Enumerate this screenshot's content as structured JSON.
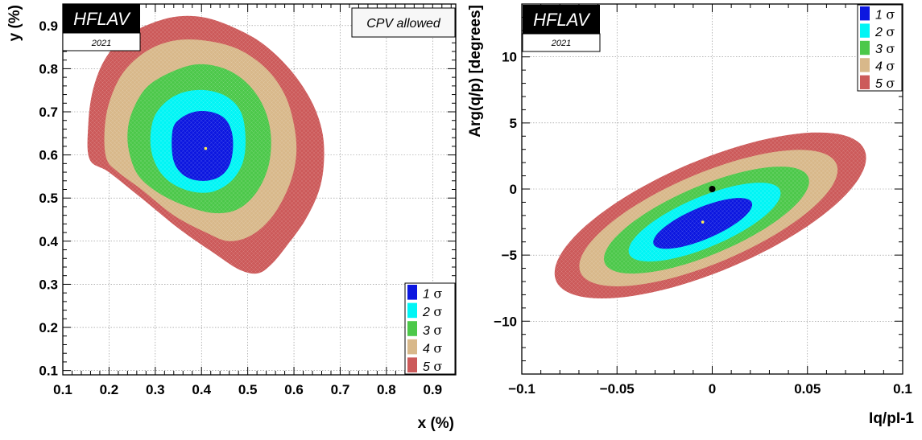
{
  "colors": {
    "sigma1": "#0c17e0",
    "sigma2": "#00f5f5",
    "sigma3": "#4cc84a",
    "sigma4": "#d8b88a",
    "sigma5": "#cc5a5a",
    "badge_bg": "#000000",
    "badge_text": "#ffffff",
    "grid": "#888888"
  },
  "chart_data": [
    {
      "type": "contour",
      "badge": "HFLAV",
      "badge_year": "2021",
      "tag": "CPV allowed",
      "xlabel": "x (%)",
      "ylabel": "y (%)",
      "xlim": [
        0.1,
        0.95
      ],
      "ylim": [
        0.09,
        0.95
      ],
      "xticks": [
        "0.1",
        "0.2",
        "0.3",
        "0.4",
        "0.5",
        "0.6",
        "0.7",
        "0.8",
        "0.9"
      ],
      "yticks": [
        "0.1",
        "0.2",
        "0.3",
        "0.4",
        "0.5",
        "0.6",
        "0.7",
        "0.8",
        "0.9"
      ],
      "grid": true,
      "legend_position": "bottom-right",
      "central_value": {
        "x": 0.409,
        "y": 0.615
      },
      "contours": [
        {
          "label": "5",
          "symbol": "σ",
          "color_key": "sigma5",
          "points": [
            [
              0.165,
              0.75
            ],
            [
              0.19,
              0.82
            ],
            [
              0.23,
              0.87
            ],
            [
              0.28,
              0.9
            ],
            [
              0.34,
              0.92
            ],
            [
              0.4,
              0.92
            ],
            [
              0.46,
              0.9
            ],
            [
              0.53,
              0.86
            ],
            [
              0.59,
              0.8
            ],
            [
              0.635,
              0.73
            ],
            [
              0.66,
              0.66
            ],
            [
              0.665,
              0.59
            ],
            [
              0.655,
              0.52
            ],
            [
              0.625,
              0.45
            ],
            [
              0.585,
              0.39
            ],
            [
              0.55,
              0.345
            ],
            [
              0.52,
              0.325
            ],
            [
              0.48,
              0.335
            ],
            [
              0.43,
              0.37
            ],
            [
              0.35,
              0.43
            ],
            [
              0.27,
              0.5
            ],
            [
              0.2,
              0.56
            ],
            [
              0.158,
              0.59
            ],
            [
              0.155,
              0.67
            ]
          ]
        },
        {
          "label": "4",
          "symbol": "σ",
          "color_key": "sigma4",
          "points": [
            [
              0.2,
              0.72
            ],
            [
              0.23,
              0.79
            ],
            [
              0.28,
              0.84
            ],
            [
              0.34,
              0.865
            ],
            [
              0.41,
              0.865
            ],
            [
              0.48,
              0.845
            ],
            [
              0.54,
              0.8
            ],
            [
              0.58,
              0.74
            ],
            [
              0.6,
              0.67
            ],
            [
              0.605,
              0.6
            ],
            [
              0.59,
              0.53
            ],
            [
              0.555,
              0.46
            ],
            [
              0.51,
              0.415
            ],
            [
              0.46,
              0.4
            ],
            [
              0.41,
              0.42
            ],
            [
              0.34,
              0.46
            ],
            [
              0.27,
              0.52
            ],
            [
              0.22,
              0.56
            ],
            [
              0.195,
              0.59
            ],
            [
              0.19,
              0.65
            ]
          ]
        },
        {
          "label": "3",
          "symbol": "σ",
          "color_key": "sigma3",
          "points": [
            [
              0.25,
              0.7
            ],
            [
              0.28,
              0.755
            ],
            [
              0.33,
              0.79
            ],
            [
              0.39,
              0.81
            ],
            [
              0.45,
              0.8
            ],
            [
              0.5,
              0.765
            ],
            [
              0.535,
              0.71
            ],
            [
              0.55,
              0.645
            ],
            [
              0.545,
              0.575
            ],
            [
              0.52,
              0.515
            ],
            [
              0.48,
              0.475
            ],
            [
              0.43,
              0.465
            ],
            [
              0.37,
              0.48
            ],
            [
              0.31,
              0.51
            ],
            [
              0.265,
              0.55
            ],
            [
              0.245,
              0.6
            ],
            [
              0.24,
              0.65
            ]
          ]
        },
        {
          "label": "2",
          "symbol": "σ",
          "color_key": "sigma2",
          "points": [
            [
              0.295,
              0.68
            ],
            [
              0.32,
              0.72
            ],
            [
              0.36,
              0.745
            ],
            [
              0.41,
              0.75
            ],
            [
              0.455,
              0.735
            ],
            [
              0.485,
              0.7
            ],
            [
              0.495,
              0.645
            ],
            [
              0.49,
              0.585
            ],
            [
              0.465,
              0.54
            ],
            [
              0.425,
              0.515
            ],
            [
              0.38,
              0.515
            ],
            [
              0.335,
              0.535
            ],
            [
              0.305,
              0.57
            ],
            [
              0.29,
              0.62
            ]
          ]
        },
        {
          "label": "1",
          "symbol": "σ",
          "color_key": "sigma1",
          "points": [
            [
              0.338,
              0.66
            ],
            [
              0.355,
              0.685
            ],
            [
              0.385,
              0.7
            ],
            [
              0.42,
              0.7
            ],
            [
              0.45,
              0.685
            ],
            [
              0.465,
              0.655
            ],
            [
              0.468,
              0.615
            ],
            [
              0.46,
              0.575
            ],
            [
              0.44,
              0.55
            ],
            [
              0.41,
              0.54
            ],
            [
              0.375,
              0.545
            ],
            [
              0.35,
              0.565
            ],
            [
              0.337,
              0.6
            ]
          ]
        }
      ]
    },
    {
      "type": "contour",
      "badge": "HFLAV",
      "badge_year": "2021",
      "xlabel": "Iq/pI-1",
      "ylabel": "Arg(q/p) [degrees]",
      "xlim": [
        -0.1,
        0.1
      ],
      "ylim": [
        -14,
        14
      ],
      "xticks": [
        "−0.1",
        "−0.05",
        "0",
        "0.05",
        "0.1"
      ],
      "yticks": [
        "−10",
        "−5",
        "0",
        "5",
        "10"
      ],
      "grid": true,
      "legend_position": "top-right",
      "reference_point": {
        "x": 0,
        "y": 0
      },
      "central_value": {
        "x": -0.005,
        "y": -2.5
      },
      "ellipses": [
        {
          "label": "5",
          "symbol": "σ",
          "color_key": "sigma5",
          "cx": -0.001,
          "cy": -2.0,
          "a": 0.088,
          "b": 4.2,
          "angle_deg": 23
        },
        {
          "label": "4",
          "symbol": "σ",
          "color_key": "sigma4",
          "cx": -0.002,
          "cy": -2.2,
          "a": 0.073,
          "b": 3.4,
          "angle_deg": 23
        },
        {
          "label": "3",
          "symbol": "σ",
          "color_key": "sigma3",
          "cx": -0.003,
          "cy": -2.35,
          "a": 0.058,
          "b": 2.6,
          "angle_deg": 23
        },
        {
          "label": "2",
          "symbol": "σ",
          "color_key": "sigma2",
          "cx": -0.004,
          "cy": -2.5,
          "a": 0.043,
          "b": 1.9,
          "angle_deg": 23
        },
        {
          "label": "1",
          "symbol": "σ",
          "color_key": "sigma1",
          "cx": -0.005,
          "cy": -2.6,
          "a": 0.028,
          "b": 1.2,
          "angle_deg": 23
        }
      ]
    }
  ]
}
